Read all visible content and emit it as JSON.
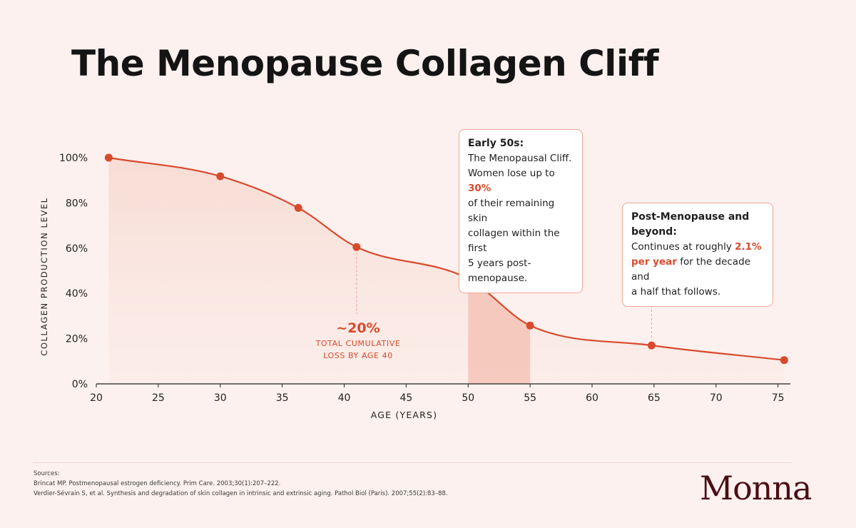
{
  "page": {
    "title": "The Menopause Collagen Cliff"
  },
  "chart_data": {
    "type": "line",
    "title": "The Menopause Collagen Cliff",
    "xlabel": "AGE (YEARS)",
    "ylabel": "COLLAGEN PRODUCTION LEVEL",
    "xlim": [
      20,
      76
    ],
    "ylim": [
      0,
      100
    ],
    "x_ticks": [
      20,
      25,
      30,
      35,
      40,
      45,
      50,
      55,
      60,
      65,
      70,
      75
    ],
    "y_ticks": [
      0,
      20,
      40,
      60,
      80,
      100
    ],
    "y_tick_suffix": "%",
    "grid": false,
    "series": [
      {
        "x": [
          21,
          30,
          36.3,
          41,
          50,
          55,
          64.8,
          75.5
        ],
        "y": [
          100,
          91.8,
          77.8,
          60.5,
          46.5,
          25.8,
          17,
          10.5
        ],
        "color": "#d84a2d"
      }
    ],
    "highlight_span": {
      "x": [
        50,
        55
      ]
    },
    "marker_lines": [
      41,
      50,
      64.8
    ],
    "annotations": [
      {
        "big": "~20%",
        "line1": "TOTAL CUMULATIVE",
        "line2": "LOSS BY AGE 40"
      }
    ]
  },
  "callouts": {
    "early": {
      "heading": "Early 50s:",
      "line1": "The Menopausal Cliff.",
      "line2_pre": "Women lose up to ",
      "line2_hl": "30%",
      "line3": "of their remaining skin",
      "line4": "collagen within the first",
      "line5": "5 years post-menopause."
    },
    "post": {
      "heading": "Post-Menopause and beyond:",
      "line1_pre": "Continues at roughly ",
      "line1_hl": "2.1%",
      "line2_hl": "per year",
      "line2_post": " for the decade and",
      "line3": "a half that follows."
    }
  },
  "sources": {
    "label": "Sources:",
    "items": [
      "Brincat MP. Postmenopausal estrogen deficiency. Prim Care. 2003;30(1):207–222.",
      "Verdier-Sévrain S, et al. Synthesis and degradation of skin collagen in intrinsic and extrinsic aging. Pathol Biol (Paris). 2007;55(2):83–88."
    ]
  },
  "brand": {
    "logo": "Monna"
  },
  "colors": {
    "accent": "#d84a2d",
    "background": "#fcf1ee",
    "logo": "#4a0e14"
  }
}
